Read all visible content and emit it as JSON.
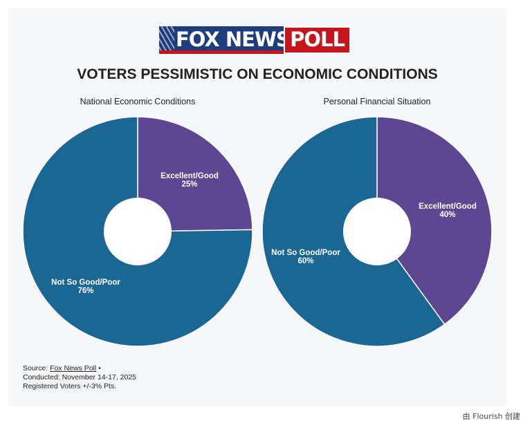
{
  "logo": {
    "brand": "FOX NEWS",
    "suffix": "POLL"
  },
  "title": "VOTERS PESSIMISTIC ON ECONOMIC CONDITIONS",
  "chart_data": [
    {
      "type": "pie",
      "title": "National Economic Conditions",
      "slices": [
        {
          "label": "Excellent/Good",
          "value": 25,
          "value_label": "25%",
          "color": "#5d4792"
        },
        {
          "label": "Not So Good/Poor",
          "value": 76,
          "value_label": "76%",
          "color": "#1b6794"
        }
      ]
    },
    {
      "type": "pie",
      "title": "Personal Financial Situation",
      "slices": [
        {
          "label": "Excellent/Good",
          "value": 40,
          "value_label": "40%",
          "color": "#5d4792"
        },
        {
          "label": "Not So Good/Poor",
          "value": 60,
          "value_label": "60%",
          "color": "#1b6794"
        }
      ]
    }
  ],
  "source": {
    "prefix": "Source: ",
    "link_text": "Fox News Poll",
    "bullet": " •",
    "conducted": "Conducted: November 14-17, 2025",
    "sample": "Registered Voters +/-3% Pts."
  },
  "footer": {
    "text": "由 Flourish 创建"
  }
}
